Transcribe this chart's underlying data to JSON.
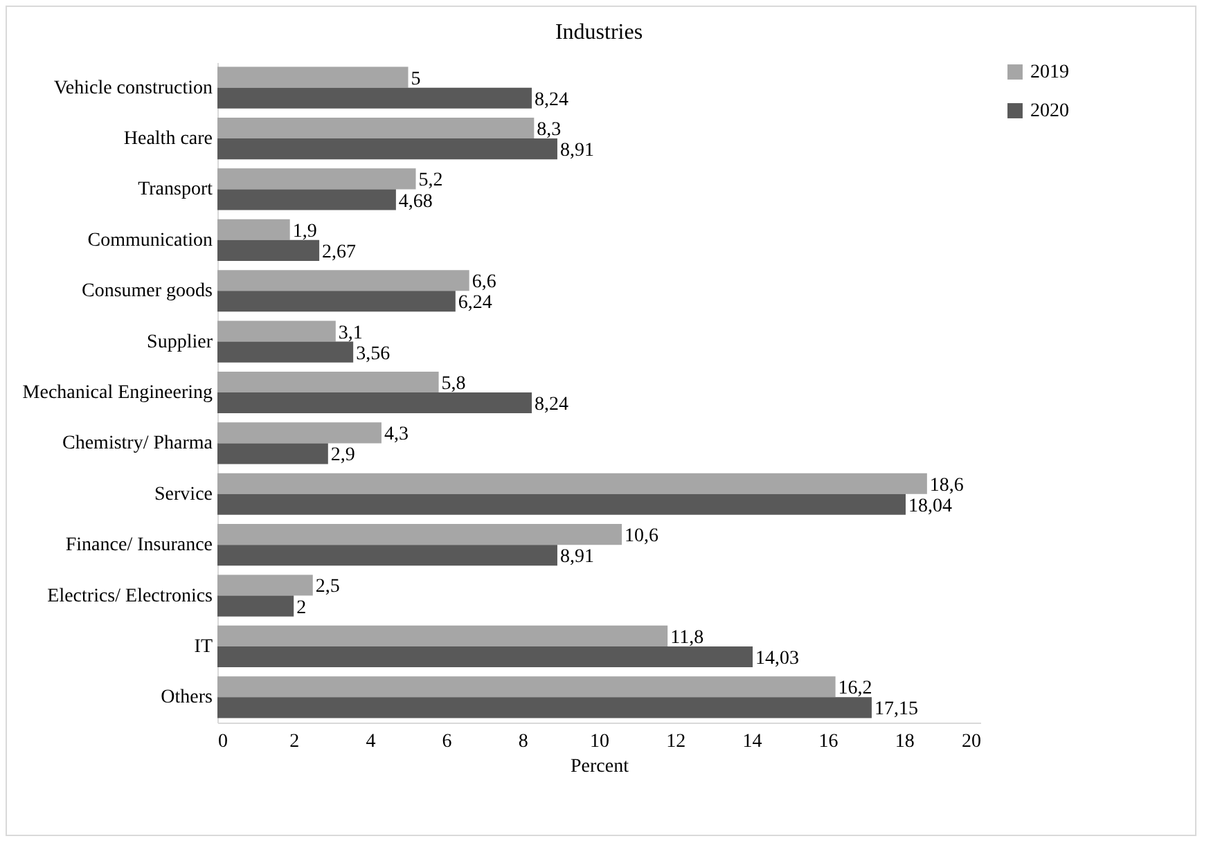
{
  "chart_data": {
    "type": "bar",
    "orientation": "horizontal",
    "title": "Industries",
    "xlabel": "Percent",
    "categories": [
      "Vehicle construction",
      "Health care",
      "Transport",
      "Communication",
      "Consumer goods",
      "Supplier",
      "Mechanical Engineering",
      "Chemistry/ Pharma",
      "Service",
      "Finance/ Insurance",
      "Electrics/ Electronics",
      "IT",
      "Others"
    ],
    "series": [
      {
        "name": "2019",
        "color": "#a6a6a6",
        "values": [
          5,
          8.3,
          5.2,
          1.9,
          6.6,
          3.1,
          5.8,
          4.3,
          18.6,
          10.6,
          2.5,
          11.8,
          16.2
        ],
        "value_labels": [
          "5",
          "8,3",
          "5,2",
          "1,9",
          "6,6",
          "3,1",
          "5,8",
          "4,3",
          "18,6",
          "10,6",
          "2,5",
          "11,8",
          "16,2"
        ]
      },
      {
        "name": "2020",
        "color": "#595959",
        "values": [
          8.24,
          8.91,
          4.68,
          2.67,
          6.24,
          3.56,
          8.24,
          2.9,
          18.04,
          8.91,
          2,
          14.03,
          17.15
        ],
        "value_labels": [
          "8,24",
          "8,91",
          "4,68",
          "2,67",
          "6,24",
          "3,56",
          "8,24",
          "2,9",
          "18,04",
          "8,91",
          "2",
          "14,03",
          "17,15"
        ]
      }
    ],
    "xlim": [
      0,
      20
    ],
    "xticks": [
      0,
      2,
      4,
      6,
      8,
      10,
      12,
      14,
      16,
      18,
      20
    ],
    "grid": false,
    "legend": "right"
  }
}
